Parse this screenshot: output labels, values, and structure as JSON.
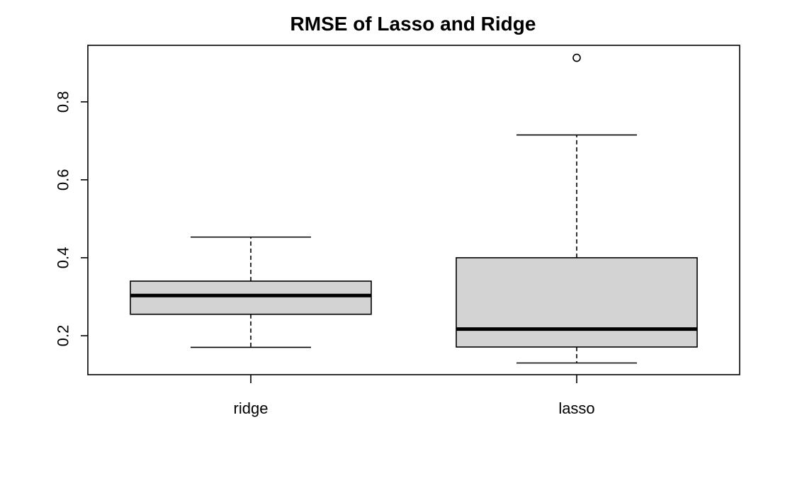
{
  "chart_data": {
    "type": "boxplot",
    "title": "RMSE of Lasso and Ridge",
    "xlabel": "",
    "ylabel": "",
    "categories": [
      "ridge",
      "lasso"
    ],
    "y_ticks": [
      0.2,
      0.4,
      0.6,
      0.8
    ],
    "ylim": [
      0.1,
      0.945
    ],
    "grid": false,
    "box_fill": "#d3d3d3",
    "boxes": [
      {
        "category": "ridge",
        "whisker_low": 0.17,
        "q1": 0.255,
        "median": 0.303,
        "q3": 0.34,
        "whisker_high": 0.453,
        "outliers": []
      },
      {
        "category": "lasso",
        "whisker_low": 0.13,
        "q1": 0.171,
        "median": 0.217,
        "q3": 0.4,
        "whisker_high": 0.715,
        "outliers": [
          0.913
        ]
      }
    ]
  }
}
